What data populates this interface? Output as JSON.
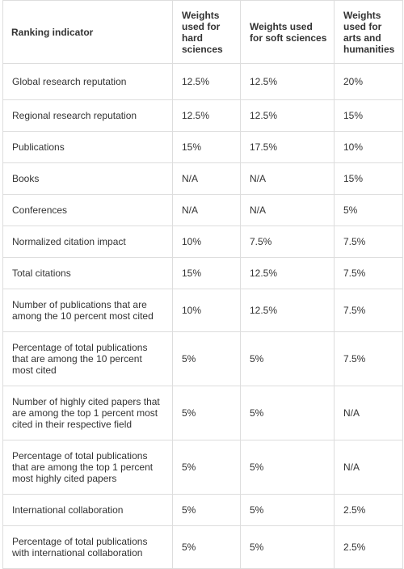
{
  "headers": [
    "Ranking indicator",
    "Weights used for hard sciences",
    "Weights used for soft sciences",
    "Weights used for arts and humanities"
  ],
  "rows": [
    [
      "Global research reputation",
      "12.5%",
      "12.5%",
      "20%"
    ],
    [
      "Regional research reputation",
      "12.5%",
      "12.5%",
      "15%"
    ],
    [
      "Publications",
      "15%",
      "17.5%",
      "10%"
    ],
    [
      "Books",
      "N/A",
      "N/A",
      "15%"
    ],
    [
      "Conferences",
      "N/A",
      "N/A",
      "5%"
    ],
    [
      "Normalized citation impact",
      "10%",
      "7.5%",
      "7.5%"
    ],
    [
      "Total citations",
      "15%",
      "12.5%",
      "7.5%"
    ],
    [
      "Number of publications that are among the 10 percent most cited",
      "10%",
      "12.5%",
      "7.5%"
    ],
    [
      "Percentage of total publications that are among the 10 percent most cited",
      "5%",
      "5%",
      "7.5%"
    ],
    [
      "Number of highly cited papers that are among the top 1 percent most cited in their respective field",
      "5%",
      "5%",
      "N/A"
    ],
    [
      "Percentage of total publications that are among the top 1 percent most highly cited papers",
      "5%",
      "5%",
      "N/A"
    ],
    [
      "International collaboration",
      "5%",
      "5%",
      "2.5%"
    ],
    [
      "Percentage of total publications with international collaboration",
      "5%",
      "5%",
      "2.5%"
    ]
  ]
}
